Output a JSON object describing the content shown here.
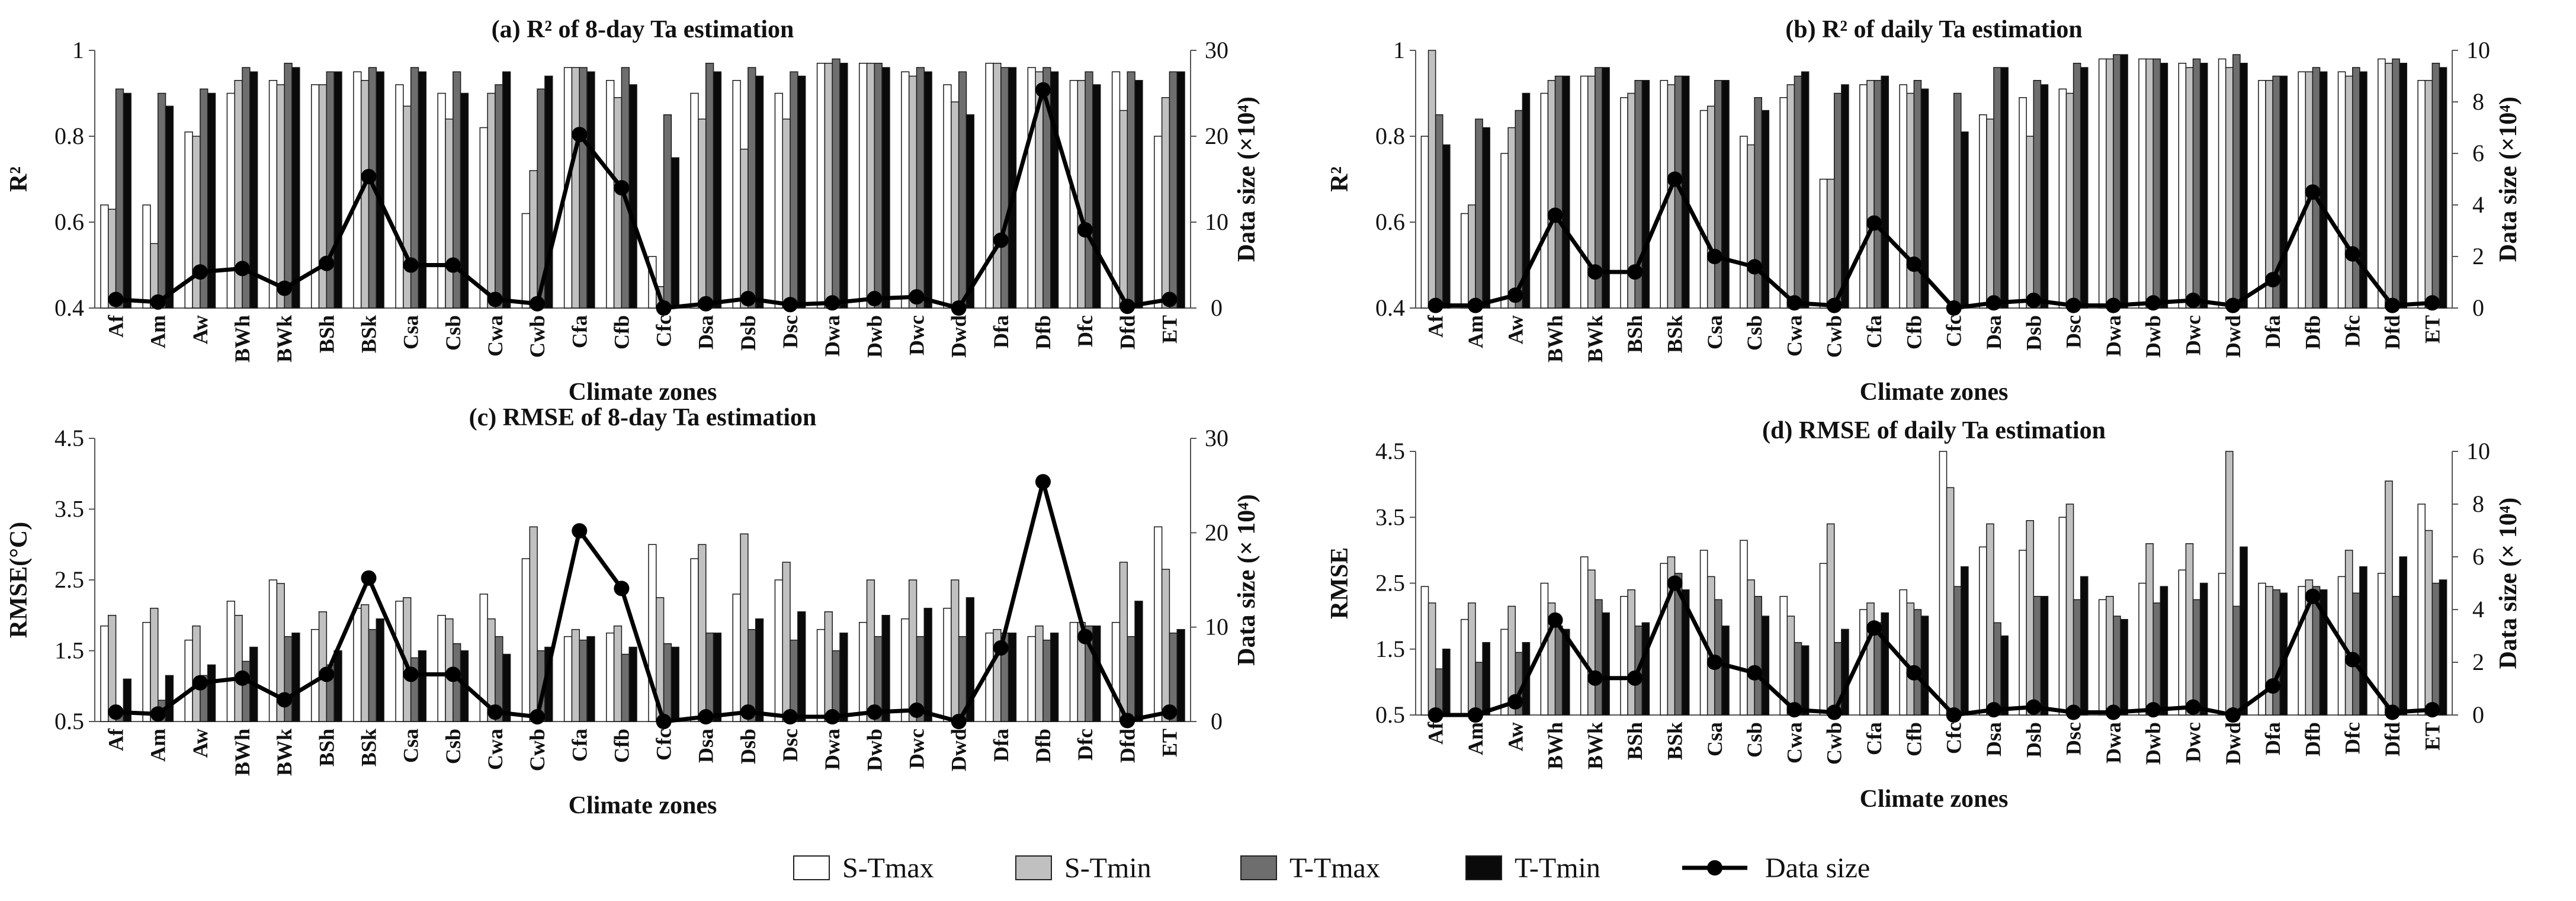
{
  "colors": {
    "S-Tmax": "#ffffff",
    "S-Tmin": "#c0c0c0",
    "T-Tmax": "#6e6e6e",
    "T-Tmin": "#0a0a0a",
    "Data size": "#000000",
    "stroke": "#222222"
  },
  "legend": [
    "S-Tmax",
    "S-Tmin",
    "T-Tmax",
    "T-Tmin",
    "Data size"
  ],
  "chart_data": [
    {
      "type": "bar",
      "title": "(a) R² of 8-day Ta estimation",
      "xlabel": "Climate zones",
      "ylabel": "R²",
      "y2label": "Data size (×10⁴)",
      "ylim": [
        0.4,
        1.0
      ],
      "yticks": [
        "0.4",
        "0.6",
        "0.8",
        "1"
      ],
      "y2lim": [
        0,
        30
      ],
      "y2ticks": [
        "0",
        "10",
        "20",
        "30"
      ],
      "categories": [
        "Af",
        "Am",
        "Aw",
        "BWh",
        "BWk",
        "BSh",
        "BSk",
        "Csa",
        "Csb",
        "Cwa",
        "Cwb",
        "Cfa",
        "Cfb",
        "Cfc",
        "Dsa",
        "Dsb",
        "Dsc",
        "Dwa",
        "Dwb",
        "Dwc",
        "Dwd",
        "Dfa",
        "Dfb",
        "Dfc",
        "Dfd",
        "ET"
      ],
      "series": [
        {
          "name": "S-Tmax",
          "values": [
            0.64,
            0.64,
            0.81,
            0.9,
            0.93,
            0.92,
            0.95,
            0.92,
            0.9,
            0.82,
            0.62,
            0.96,
            0.93,
            0.52,
            0.9,
            0.93,
            0.9,
            0.97,
            0.97,
            0.95,
            0.92,
            0.97,
            0.96,
            0.93,
            0.95,
            0.8
          ]
        },
        {
          "name": "S-Tmin",
          "values": [
            0.63,
            0.55,
            0.8,
            0.93,
            0.92,
            0.92,
            0.93,
            0.87,
            0.84,
            0.9,
            0.72,
            0.96,
            0.89,
            0.45,
            0.84,
            0.77,
            0.84,
            0.97,
            0.97,
            0.94,
            0.88,
            0.97,
            0.95,
            0.93,
            0.86,
            0.89
          ]
        },
        {
          "name": "T-Tmax",
          "values": [
            0.91,
            0.9,
            0.91,
            0.96,
            0.97,
            0.95,
            0.96,
            0.96,
            0.95,
            0.92,
            0.91,
            0.96,
            0.96,
            0.85,
            0.97,
            0.96,
            0.95,
            0.98,
            0.97,
            0.96,
            0.95,
            0.96,
            0.96,
            0.95,
            0.95,
            0.95
          ]
        },
        {
          "name": "T-Tmin",
          "values": [
            0.9,
            0.87,
            0.9,
            0.95,
            0.96,
            0.95,
            0.95,
            0.95,
            0.9,
            0.95,
            0.94,
            0.95,
            0.92,
            0.75,
            0.95,
            0.94,
            0.94,
            0.97,
            0.96,
            0.95,
            0.85,
            0.96,
            0.95,
            0.92,
            0.93,
            0.95
          ]
        }
      ],
      "line": {
        "name": "Data size",
        "values": [
          1.0,
          0.7,
          4.2,
          4.6,
          2.3,
          5.2,
          15.3,
          5.0,
          5.0,
          1.0,
          0.5,
          20.2,
          14.0,
          0.0,
          0.5,
          1.1,
          0.4,
          0.6,
          1.1,
          1.3,
          0.0,
          7.9,
          25.4,
          9.1,
          0.2,
          1.0
        ]
      }
    },
    {
      "type": "bar",
      "title": "(b) R² of daily Ta estimation",
      "xlabel": "Climate zones",
      "ylabel": "R²",
      "y2label": "Data size (×10⁴)",
      "ylim": [
        0.4,
        1.0
      ],
      "yticks": [
        "0.4",
        "0.6",
        "0.8",
        "1"
      ],
      "y2lim": [
        0,
        10
      ],
      "y2ticks": [
        "0",
        "2",
        "4",
        "6",
        "8",
        "10"
      ],
      "categories": [
        "Af",
        "Am",
        "Aw",
        "BWh",
        "BWk",
        "BSh",
        "BSk",
        "Csa",
        "Csb",
        "Cwa",
        "Cwb",
        "Cfa",
        "Cfb",
        "Cfc",
        "Dsa",
        "Dsb",
        "Dsc",
        "Dwa",
        "Dwb",
        "Dwc",
        "Dwd",
        "Dfa",
        "Dfb",
        "Dfc",
        "Dfd",
        "ET"
      ],
      "series": [
        {
          "name": "S-Tmax",
          "values": [
            0.8,
            0.62,
            0.76,
            0.9,
            0.94,
            0.89,
            0.93,
            0.86,
            0.8,
            0.89,
            0.7,
            0.92,
            0.92,
            0.39,
            0.85,
            0.89,
            0.91,
            0.98,
            0.98,
            0.97,
            0.98,
            0.93,
            0.95,
            0.95,
            0.98,
            0.93
          ]
        },
        {
          "name": "S-Tmin",
          "values": [
            1.0,
            0.64,
            0.82,
            0.93,
            0.94,
            0.9,
            0.92,
            0.87,
            0.78,
            0.92,
            0.7,
            0.93,
            0.9,
            0.4,
            0.84,
            0.8,
            0.9,
            0.98,
            0.98,
            0.96,
            0.96,
            0.93,
            0.95,
            0.94,
            0.97,
            0.93
          ]
        },
        {
          "name": "T-Tmax",
          "values": [
            0.85,
            0.84,
            0.86,
            0.94,
            0.96,
            0.93,
            0.94,
            0.93,
            0.89,
            0.94,
            0.9,
            0.93,
            0.93,
            0.9,
            0.96,
            0.93,
            0.97,
            0.99,
            0.98,
            0.98,
            0.99,
            0.94,
            0.96,
            0.96,
            0.98,
            0.97
          ]
        },
        {
          "name": "T-Tmin",
          "values": [
            0.78,
            0.82,
            0.9,
            0.94,
            0.96,
            0.93,
            0.94,
            0.93,
            0.86,
            0.95,
            0.92,
            0.94,
            0.91,
            0.81,
            0.96,
            0.92,
            0.96,
            0.99,
            0.97,
            0.97,
            0.97,
            0.94,
            0.95,
            0.95,
            0.97,
            0.96
          ]
        }
      ],
      "line": {
        "name": "Data size",
        "values": [
          0.1,
          0.1,
          0.5,
          3.6,
          1.4,
          1.4,
          5.0,
          2.0,
          1.6,
          0.2,
          0.1,
          3.3,
          1.7,
          0.0,
          0.2,
          0.3,
          0.1,
          0.1,
          0.2,
          0.3,
          0.1,
          1.1,
          4.5,
          2.1,
          0.1,
          0.2
        ]
      }
    },
    {
      "type": "bar",
      "title": "(c) RMSE of 8-day Ta estimation",
      "xlabel": "Climate zones",
      "ylabel": "RMSE(°C)",
      "y2label": "Data size (× 10⁴)",
      "ylim": [
        0.5,
        4.5
      ],
      "yticks": [
        "0.5",
        "1.5",
        "2.5",
        "3.5",
        "4.5"
      ],
      "y2lim": [
        0,
        30
      ],
      "y2ticks": [
        "0",
        "10",
        "20",
        "30"
      ],
      "categories": [
        "Af",
        "Am",
        "Aw",
        "BWh",
        "BWk",
        "BSh",
        "BSk",
        "Csa",
        "Csb",
        "Cwa",
        "Cwb",
        "Cfa",
        "Cfb",
        "Cfc",
        "Dsa",
        "Dsb",
        "Dsc",
        "Dwa",
        "Dwb",
        "Dwc",
        "Dwd",
        "Dfa",
        "Dfb",
        "Dfc",
        "Dfd",
        "ET"
      ],
      "series": [
        {
          "name": "S-Tmax",
          "values": [
            1.85,
            1.9,
            1.65,
            2.2,
            2.5,
            1.8,
            2.1,
            2.2,
            2.0,
            2.3,
            2.8,
            1.7,
            1.75,
            3.0,
            2.8,
            2.3,
            2.5,
            1.8,
            1.9,
            1.95,
            2.1,
            1.75,
            1.7,
            1.9,
            1.9,
            3.25
          ]
        },
        {
          "name": "S-Tmin",
          "values": [
            2.0,
            2.1,
            1.85,
            2.0,
            2.45,
            2.05,
            2.15,
            2.25,
            1.95,
            1.95,
            3.25,
            1.8,
            1.85,
            2.25,
            3.0,
            3.15,
            2.75,
            2.05,
            2.5,
            2.5,
            2.5,
            1.8,
            1.85,
            1.9,
            2.75,
            2.65
          ]
        },
        {
          "name": "T-Tmax",
          "values": [
            0.65,
            0.8,
            1.15,
            1.35,
            1.7,
            1.3,
            1.8,
            1.4,
            1.6,
            1.7,
            1.5,
            1.65,
            1.45,
            1.6,
            1.75,
            1.8,
            1.65,
            1.5,
            1.7,
            1.7,
            1.7,
            1.75,
            1.65,
            1.85,
            1.7,
            1.75
          ]
        },
        {
          "name": "T-Tmin",
          "values": [
            1.1,
            1.15,
            1.3,
            1.55,
            1.75,
            1.5,
            1.95,
            1.5,
            1.5,
            1.45,
            1.55,
            1.7,
            1.55,
            1.55,
            1.75,
            1.95,
            2.05,
            1.75,
            2.0,
            2.1,
            2.25,
            1.75,
            1.75,
            1.85,
            2.2,
            1.8
          ]
        }
      ],
      "line": {
        "name": "Data size",
        "values": [
          1.0,
          0.8,
          4.1,
          4.6,
          2.3,
          5.0,
          15.2,
          5.0,
          5.0,
          1.0,
          0.5,
          20.2,
          14.1,
          0.0,
          0.5,
          1.0,
          0.5,
          0.5,
          1.0,
          1.2,
          0.0,
          7.8,
          25.4,
          9.0,
          0.1,
          1.0
        ]
      }
    },
    {
      "type": "bar",
      "title": "(d) RMSE of daily Ta estimation",
      "xlabel": "Climate zones",
      "ylabel": "RMSE",
      "y2label": "Data size (× 10⁴)",
      "ylim": [
        0.5,
        4.5
      ],
      "yticks": [
        "0.5",
        "1.5",
        "2.5",
        "3.5",
        "4.5"
      ],
      "y2lim": [
        0,
        10
      ],
      "y2ticks": [
        "0",
        "2",
        "4",
        "6",
        "8",
        "10"
      ],
      "categories": [
        "Af",
        "Am",
        "Aw",
        "BWh",
        "BWk",
        "BSh",
        "BSk",
        "Csa",
        "Csb",
        "Cwa",
        "Cwb",
        "Cfa",
        "Cfb",
        "Cfc",
        "Dsa",
        "Dsb",
        "Dsc",
        "Dwa",
        "Dwb",
        "Dwc",
        "Dwd",
        "Dfa",
        "Dfb",
        "Dfc",
        "Dfd",
        "ET"
      ],
      "series": [
        {
          "name": "S-Tmax",
          "values": [
            2.45,
            1.95,
            1.8,
            2.5,
            2.9,
            2.3,
            2.8,
            3.0,
            3.15,
            2.3,
            2.8,
            2.1,
            2.4,
            4.5,
            3.05,
            3.0,
            3.5,
            2.25,
            2.5,
            2.7,
            2.65,
            2.5,
            2.45,
            2.6,
            2.65,
            3.7
          ]
        },
        {
          "name": "S-Tmin",
          "values": [
            2.2,
            2.2,
            2.15,
            2.2,
            2.7,
            2.4,
            2.9,
            2.6,
            2.55,
            2.0,
            3.4,
            2.2,
            2.2,
            3.95,
            3.4,
            3.45,
            3.7,
            2.3,
            3.1,
            3.1,
            4.5,
            2.45,
            2.55,
            3.0,
            4.05,
            3.3
          ]
        },
        {
          "name": "T-Tmax",
          "values": [
            1.2,
            1.3,
            1.45,
            1.85,
            2.25,
            1.85,
            2.65,
            2.25,
            2.3,
            1.6,
            1.6,
            1.9,
            2.1,
            2.45,
            1.9,
            2.3,
            2.25,
            2.0,
            2.2,
            2.25,
            2.15,
            2.4,
            2.45,
            2.35,
            2.3,
            2.5
          ]
        },
        {
          "name": "T-Tmin",
          "values": [
            1.5,
            1.6,
            1.6,
            1.8,
            2.05,
            1.9,
            2.4,
            1.85,
            2.0,
            1.55,
            1.8,
            2.05,
            2.0,
            2.75,
            1.7,
            2.3,
            2.6,
            1.95,
            2.45,
            2.5,
            3.05,
            2.35,
            2.4,
            2.75,
            2.9,
            2.55
          ]
        }
      ],
      "line": {
        "name": "Data size",
        "values": [
          0.0,
          0.0,
          0.5,
          3.6,
          1.4,
          1.4,
          5.0,
          2.0,
          1.6,
          0.2,
          0.1,
          3.3,
          1.6,
          0.0,
          0.2,
          0.3,
          0.1,
          0.1,
          0.2,
          0.3,
          0.0,
          1.1,
          4.5,
          2.1,
          0.1,
          0.2
        ]
      }
    }
  ]
}
